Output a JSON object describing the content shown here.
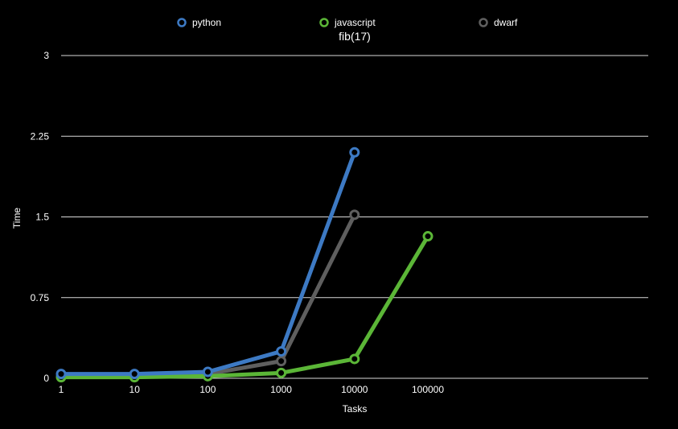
{
  "chart_data": {
    "type": "line",
    "title": "fib(17)",
    "xlabel": "Tasks",
    "ylabel": "Time",
    "categories": [
      "1",
      "10",
      "100",
      "1000",
      "10000",
      "100000"
    ],
    "ylim": [
      0,
      3
    ],
    "yticks": [
      "0",
      "0.75",
      "1.5",
      "2.25",
      "3"
    ],
    "grid": true,
    "legend_position": "top",
    "series": [
      {
        "name": "python",
        "color": "#3d7ac4",
        "values": [
          0.04,
          0.04,
          0.06,
          0.25,
          2.1,
          null
        ]
      },
      {
        "name": "javascript",
        "color": "#5bb637",
        "values": [
          0.01,
          0.01,
          0.02,
          0.05,
          0.18,
          1.32
        ]
      },
      {
        "name": "dwarf",
        "color": "#5f5f5f",
        "values": [
          0.02,
          0.02,
          0.04,
          0.16,
          1.52,
          null
        ]
      }
    ]
  }
}
